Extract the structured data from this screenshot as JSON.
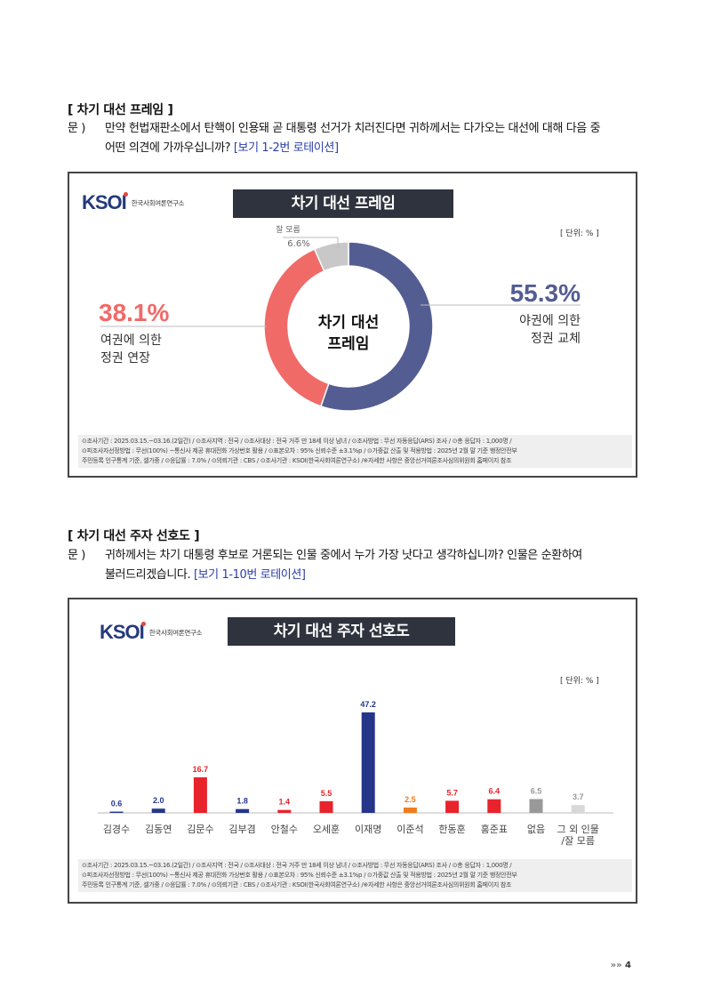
{
  "section1": {
    "title": "[ 차기 대선 프레임 ]",
    "q_label": "문 )",
    "question_line1": "만약 헌법재판소에서 탄핵이 인용돼 곧 대통령 선거가 치러진다면 귀하께서는 다가오는 대선에 대해 다음 중",
    "question_line2": "어떤 의견에 가까우십니까?",
    "rotation": "[보기 1-2번 로테이션]",
    "panel": {
      "logo": "KSOI",
      "logo_sub": "한국사회여론연구소",
      "banner": "차기 대선 프레임",
      "unit": "[ 단위: % ]",
      "center_label_1": "차기 대선",
      "center_label_2": "프레임",
      "colors": {
        "opposition": "#535d92",
        "ruling": "#f06a68",
        "unknown": "#c8c8c8",
        "banner": "#2f333d"
      },
      "footnote_1": "⊙조사기간 : 2025.03.15.~03.16.(2일간) / ⊙조사지역 : 전국 / ⊙조사대상 : 전국 거주 만 18세 이상 남녀 / ⊙조사방법 : 무선 자동응답(ARS) 조사 / ⊙총 응답자 : 1,000명 /",
      "footnote_2": "⊙피조사자선정방법 : 무선(100%) ~통신사 제공 휴대전화 가상번호 활용 / ⊙표본오차 : 95% 신뢰수준 ±3.1%p / ⊙가중값 산출 및 적용방법 : 2025년 2월 말 기준 행정안전부",
      "footnote_3": "주민등록 인구통계 기준, 셀가중 / ⊙응답률 : 7.0% / ⊙의뢰기관 : CBS / ⊙조사기관 : KSOI(한국사회여론연구소) /※자세한 사항은 중앙선거여론조사심의위원회 홈페이지 참조"
    }
  },
  "section2": {
    "title": "[ 차기 대선 주자 선호도 ]",
    "q_label": "문 )",
    "question_line1": "귀하께서는 차기 대통령 후보로 거론되는 인물 중에서 누가 가장 낫다고 생각하십니까? 인물은 순환하여",
    "question_line2": "불러드리겠습니다.",
    "rotation": "[보기 1-10번 로테이션]",
    "panel": {
      "logo": "KSOI",
      "logo_sub": "한국사회여론연구소",
      "banner": "차기 대선 주자 선호도",
      "unit": "[ 단위: % ]",
      "footnote_1": "⊙조사기간 : 2025.03.15.~03.16.(2일간) / ⊙조사지역 : 전국 / ⊙조사대상 : 전국 거주 만 18세 이상 남녀 / ⊙조사방법 : 무선 자동응답(ARS) 조사 / ⊙총 응답자 : 1,000명 /",
      "footnote_2": "⊙피조사자선정방법 : 무선(100%) ~통신사 제공 휴대전화 가상번호 활용 / ⊙표본오차 : 95% 신뢰수준 ±3.1%p / ⊙가중값 산출 및 적용방법 : 2025년 2월 말 기준 행정안전부",
      "footnote_3": "주민등록 인구통계 기준, 셀가중 / ⊙응답률 : 7.0% / ⊙의뢰기관 : CBS / ⊙조사기관 : KSOI(한국사회여론연구소) /※자세한 사항은 중앙선거여론조사심의위원회 홈페이지 참조"
    }
  },
  "page_number": "4",
  "page_arrows": "»»",
  "chart_data": [
    {
      "type": "pie",
      "title": "차기 대선 프레임",
      "unit": "%",
      "slices": [
        {
          "name_1": "야권에 의한",
          "name_2": "정권 교체",
          "value": 55.3,
          "label": "55.3%",
          "color": "#535d92"
        },
        {
          "name_1": "여권에 의한",
          "name_2": "정권 연장",
          "value": 38.1,
          "label": "38.1%",
          "color": "#f06a68"
        },
        {
          "name_1": "잘 모름",
          "name_2": "",
          "value": 6.6,
          "label": "6.6%",
          "color": "#c8c8c8"
        }
      ]
    },
    {
      "type": "bar",
      "title": "차기 대선 주자 선호도",
      "unit": "%",
      "categories": [
        "김경수",
        "김동연",
        "김문수",
        "김부겸",
        "안철수",
        "오세훈",
        "이재명",
        "이준석",
        "한동훈",
        "홍준표",
        "없음",
        "그 외 인물/잘 모름"
      ],
      "values": [
        0.6,
        2.0,
        16.7,
        1.8,
        1.4,
        5.5,
        47.2,
        2.5,
        5.7,
        6.4,
        6.5,
        3.7
      ],
      "labels": [
        "0.6",
        "2.0",
        "16.7",
        "1.8",
        "1.4",
        "5.5",
        "47.2",
        "2.5",
        "5.7",
        "6.4",
        "6.5",
        "3.7"
      ],
      "colors": [
        "#25368a",
        "#25368a",
        "#e8232b",
        "#25368a",
        "#e8232b",
        "#e8232b",
        "#25368a",
        "#f07d1e",
        "#e8232b",
        "#e8232b",
        "#999999",
        "#d8d8d8"
      ],
      "ylim": [
        0,
        50
      ]
    }
  ]
}
